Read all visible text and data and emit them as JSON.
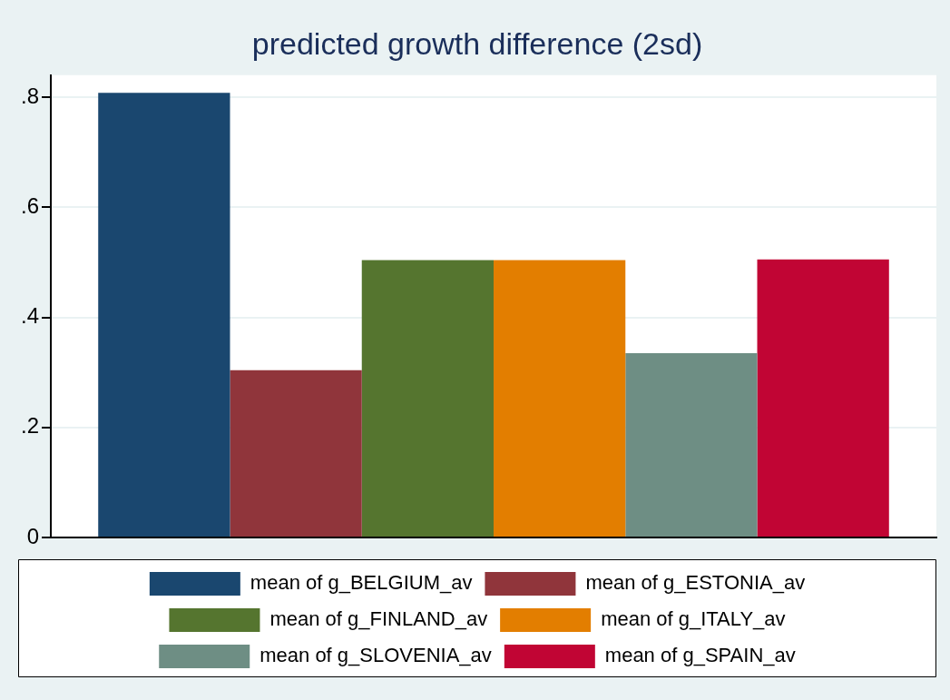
{
  "chart_data": {
    "type": "bar",
    "title": "predicted growth difference (2sd)",
    "categories": [
      null
    ],
    "series": [
      {
        "name": "mean of g_BELGIUM_av",
        "color": "#1a476f",
        "values": [
          0.808
        ]
      },
      {
        "name": "mean of g_ESTONIA_av",
        "color": "#90353b",
        "values": [
          0.304
        ]
      },
      {
        "name": "mean of g_FINLAND_av",
        "color": "#55752f",
        "values": [
          0.504
        ]
      },
      {
        "name": "mean of g_ITALY_av",
        "color": "#e37e00",
        "values": [
          0.504
        ]
      },
      {
        "name": "mean of g_SLOVENIA_av",
        "color": "#6e8e84",
        "values": [
          0.335
        ]
      },
      {
        "name": "mean of g_SPAIN_av",
        "color": "#c10534",
        "values": [
          0.505
        ]
      }
    ],
    "ylim": [
      0,
      0.84
    ],
    "yticks": [
      {
        "value": 0,
        "label": "0"
      },
      {
        "value": 0.2,
        "label": ".2"
      },
      {
        "value": 0.4,
        "label": ".4"
      },
      {
        "value": 0.6,
        "label": ".6"
      },
      {
        "value": 0.8,
        "label": ".8"
      }
    ],
    "grid": "y",
    "legend": "bottom"
  }
}
